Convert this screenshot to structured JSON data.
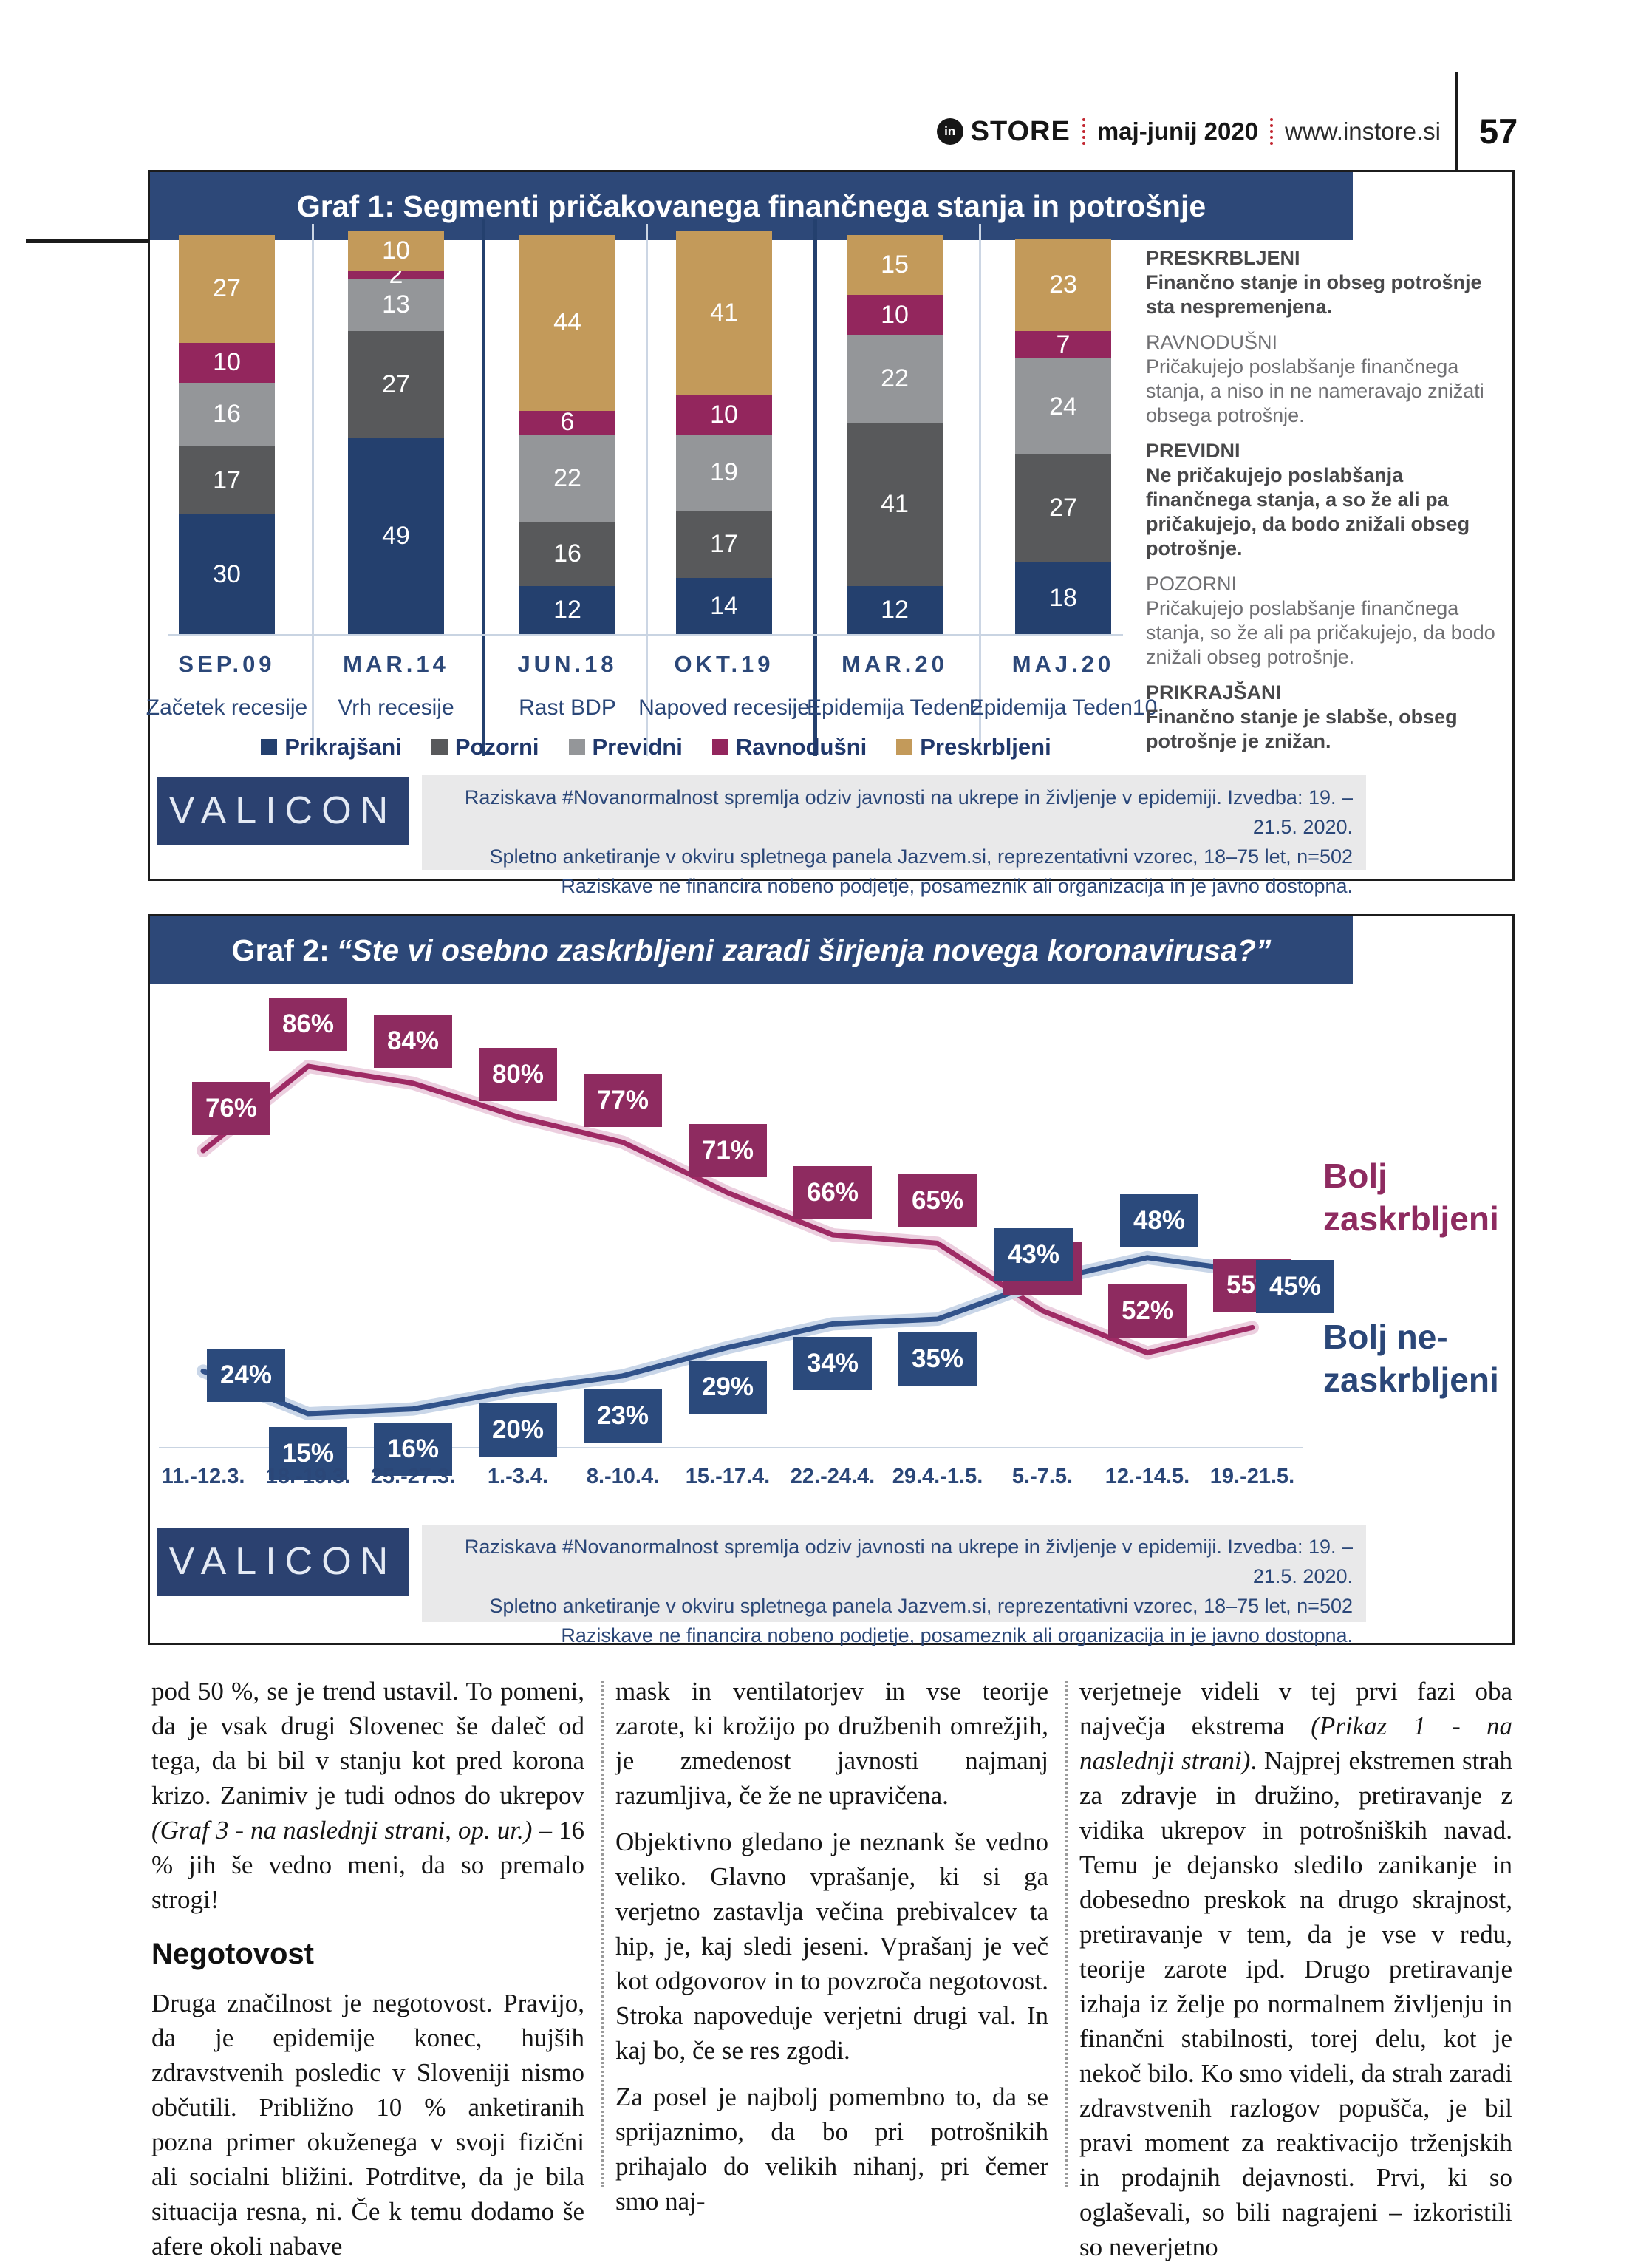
{
  "header": {
    "logo_monogram": "in",
    "brand": "STORE",
    "issue": "maj-junij 2020",
    "site": "www.instore.si",
    "page_number": "57"
  },
  "valicon_logo": "VALICON",
  "source": {
    "lines": [
      "Raziskava #Novanormalnost spremlja odziv javnosti na ukrepe in življenje v epidemiji. Izvedba: 19. –21.5. 2020.",
      "Spletno anketiranje v okviru spletnega panela Jazvem.si, reprezentativni vzorec, 18–75 let, n=502",
      "Raziskave ne financira nobeno podjetje, posameznik ali organizacija in je javno dostopna."
    ]
  },
  "chart_data": [
    {
      "type": "bar",
      "stacked": true,
      "title": "Graf 1: Segmenti pričakovanega finančnega stanja in potrošnje",
      "categories": [
        "SEP.09",
        "MAR.14",
        "JUN.18",
        "OKT.19",
        "MAR.20",
        "MAJ.20"
      ],
      "category_sublabels": [
        "Začetek recesije",
        "Vrh recesije",
        "Rast BDP",
        "Napoved recesije",
        "Epidemija Teden2",
        "Epidemija Teden10"
      ],
      "series": [
        {
          "name": "Prikrajšani",
          "color": "#24406e",
          "values": [
            30,
            49,
            12,
            14,
            12,
            18
          ]
        },
        {
          "name": "Pozorni",
          "color": "#58595b",
          "values": [
            17,
            27,
            16,
            17,
            41,
            27
          ]
        },
        {
          "name": "Previdni",
          "color": "#949699",
          "values": [
            16,
            13,
            22,
            19,
            22,
            24
          ]
        },
        {
          "name": "Ravnodušni",
          "color": "#93265d",
          "values": [
            10,
            2,
            6,
            10,
            10,
            7
          ]
        },
        {
          "name": "Preskrbljeni",
          "color": "#c39a5a",
          "values": [
            27,
            10,
            44,
            41,
            15,
            23
          ]
        }
      ],
      "ylim": [
        0,
        101
      ],
      "value_labels": true,
      "group_separators_after_category": [
        2,
        4
      ],
      "legend_position": "bottom"
    },
    {
      "type": "line",
      "title_prefix": "Graf 2:",
      "title_quote": "“Ste vi osebno zaskrbljeni zaradi širjenja novega koronavirusa?”",
      "x": [
        "11.-12.3.",
        "18.-19.3.",
        "25.-27.3.",
        "1.-3.4.",
        "8.-10.4.",
        "15.-17.4.",
        "22.-24.4.",
        "29.4.-1.5.",
        "5.-7.5.",
        "12.-14.5.",
        "19.-21.5."
      ],
      "unit": "%",
      "series": [
        {
          "name": "Bolj zaskrbljeni",
          "color": "#9e2a64",
          "box_color": "#8e2b60",
          "glow": "#eccfdf",
          "label_lines": [
            "Bolj",
            "zaskrbljeni"
          ],
          "values": [
            76,
            86,
            84,
            80,
            77,
            71,
            66,
            65,
            57,
            52,
            55
          ]
        },
        {
          "name": "Bolj ne-zaskrbljeni",
          "color": "#31528a",
          "box_color": "#2b4a7c",
          "glow": "#c9d6e8",
          "label_lines": [
            "Bolj ne-",
            "zaskrbljeni"
          ],
          "values": [
            24,
            15,
            16,
            20,
            23,
            29,
            34,
            35,
            43,
            48,
            45
          ]
        }
      ],
      "grid": false,
      "legend_position": "right"
    }
  ],
  "graf1_defs": [
    {
      "term": "PRESKRBLJENI",
      "bold": true,
      "desc": "Finančno stanje in obseg potrošnje sta nespremenjena."
    },
    {
      "term": "RAVNODUŠNI",
      "bold": false,
      "desc": "Pričakujejo poslabšanje finančnega stanja, a niso in ne nameravajo znižati obsega potrošnje."
    },
    {
      "term": "PREVIDNI",
      "bold": true,
      "desc": "Ne pričakujejo poslabšanja finančnega stanja, a so že ali pa pričakujejo, da bodo znižali obseg potrošnje."
    },
    {
      "term": "POZORNI",
      "bold": false,
      "desc": "Pričakujejo poslabšanje finančnega stanja, so že ali pa pričakujejo, da bodo znižali obseg potrošnje."
    },
    {
      "term": "PRIKRAJŠANI",
      "bold": true,
      "desc": "Finančno stanje je slabše, obseg potrošnje je znižan."
    }
  ],
  "article": {
    "columns": [
      [
        {
          "type": "p",
          "segments": [
            {
              "text": "pod 50 %, se je trend ustavil. To pomeni, da je vsak drugi Slovenec še daleč od tega, da bi bil v stanju kot pred korona krizo. Zanimiv je tudi odnos do ukrepov "
            },
            {
              "text": "(Graf 3 - na naslednji strani, op. ur.)",
              "italic": true
            },
            {
              "text": " – 16 % jih še vedno meni, da so premalo strogi!"
            }
          ]
        },
        {
          "type": "h",
          "text": "Negotovost"
        },
        {
          "type": "p",
          "segments": [
            {
              "text": "Druga značilnost je negotovost. Pravijo, da je epidemije konec, hujših zdravstvenih posledic v Sloveniji nismo občutili. Približno 10 % anketiranih pozna primer okuženega v svoji fizični ali socialni bližini. Potrditve, da je bila situacija resna, ni. Če k temu dodamo še afere okoli nabave"
            }
          ]
        }
      ],
      [
        {
          "type": "p",
          "segments": [
            {
              "text": "mask in ventilatorjev in vse teorije zarote, ki krožijo po družbenih omrežjih, je zmedenost javnosti najmanj razumljiva, če že ne upravičena."
            }
          ]
        },
        {
          "type": "p",
          "segments": [
            {
              "text": "Objektivno gledano je neznank še vedno veliko. Glavno vprašanje, ki si ga verjetno zastavlja večina prebivalcev ta hip, je, kaj sledi jeseni. Vprašanj je več kot odgovorov in to povzroča negotovost. Stroka napoveduje verjetni drugi val. In kaj bo, če se res zgodi."
            }
          ]
        },
        {
          "type": "p",
          "segments": [
            {
              "text": "Za posel je najbolj pomembno to, da se sprijaznimo, da bo pri potrošnikih prihajalo do velikih nihanj, pri čemer smo naj-"
            }
          ]
        }
      ],
      [
        {
          "type": "p",
          "segments": [
            {
              "text": "verjetneje videli v tej prvi fazi oba največja ekstrema "
            },
            {
              "text": "(Prikaz 1 - na naslednji strani)",
              "italic": true
            },
            {
              "text": ". Najprej ekstremen strah za zdravje in družino, pretiravanje z vidika ukrepov in potrošniških navad. Temu je dejansko sledilo zanikanje in dobesedno preskok na drugo skrajnost, pretiravanje v tem, da je vse v redu, teorije zarote ipd. Drugo pretiravanje izhaja iz želje po normalnem življenju in finančni stabilnosti, torej delu, kot je nekoč bilo. Ko smo videli, da strah zaradi zdravstvenih razlogov popušča, je bil pravi moment za reaktivacijo trženjskih in prodajnih dejavnosti. Prvi, ki so oglaševali, so bili nagrajeni – izkoristili so neverjetno"
            }
          ]
        }
      ]
    ]
  }
}
